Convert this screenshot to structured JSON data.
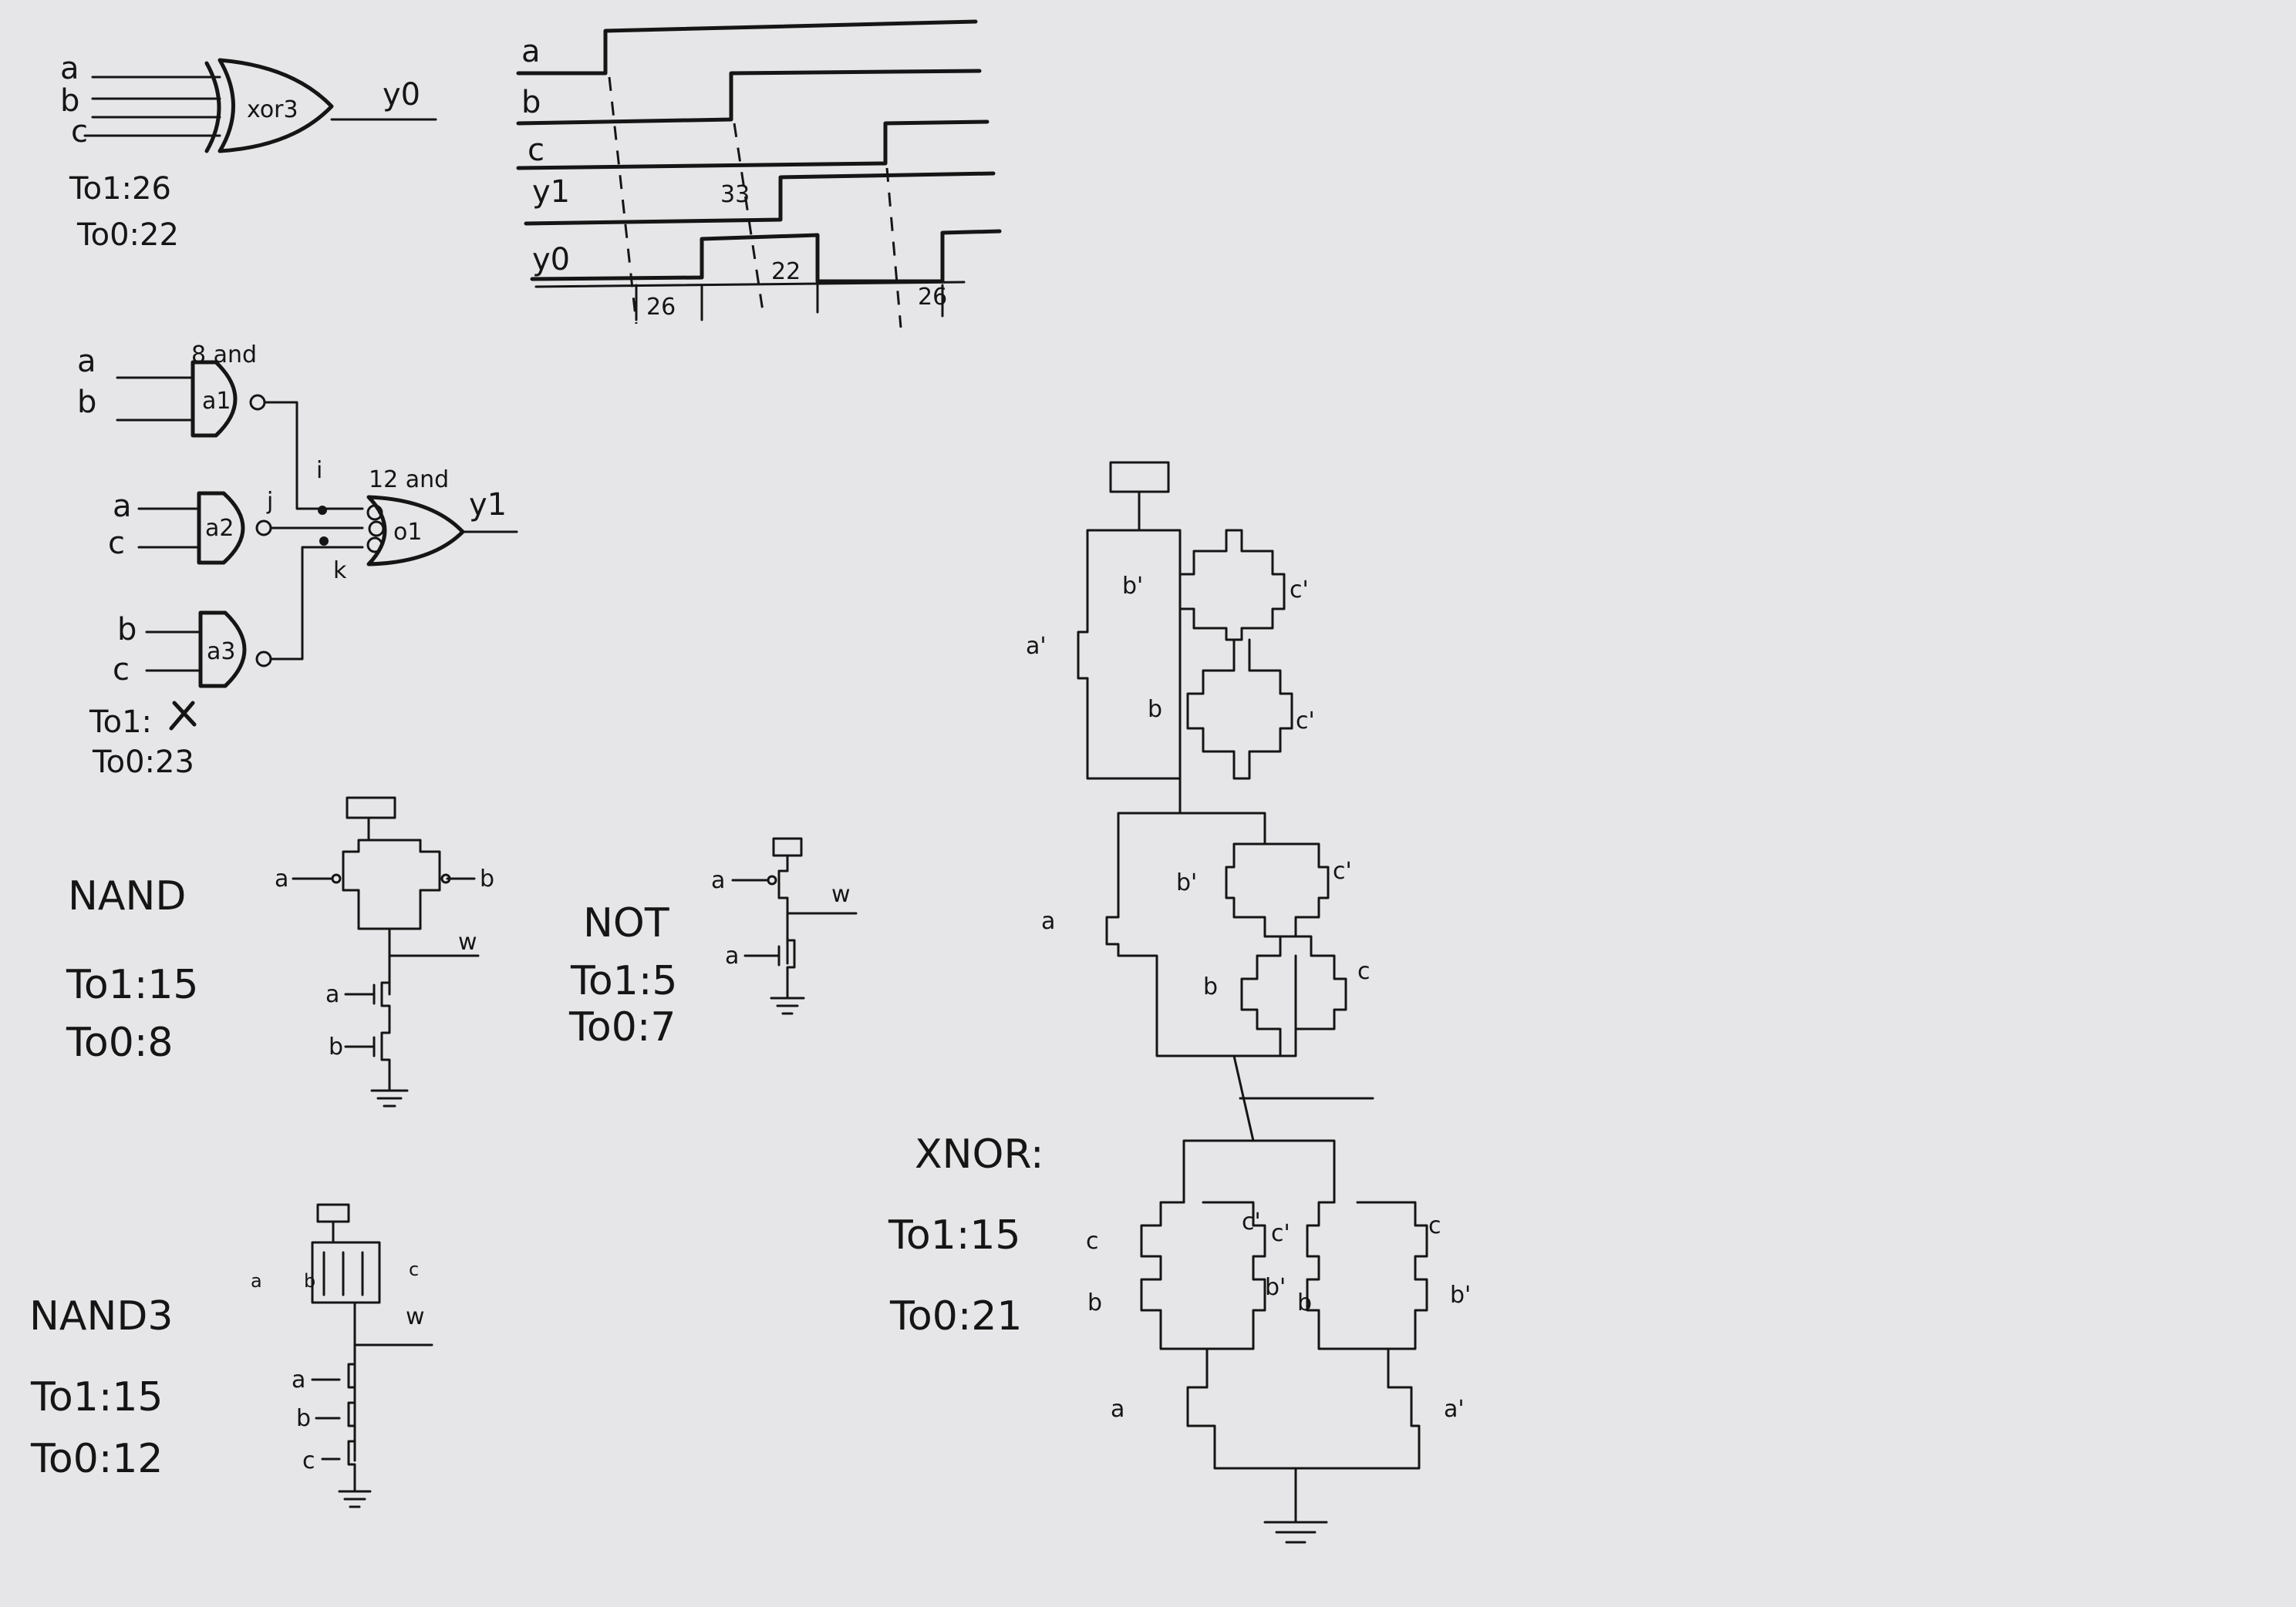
{
  "xor_block": {
    "inputs": [
      "a",
      "b",
      "c"
    ],
    "gate_label": "xor3",
    "output": "y0",
    "t01": "To1:26",
    "t00": "To0:22"
  },
  "timing": {
    "signals": [
      "a",
      "b",
      "c",
      "y1",
      "y0"
    ],
    "delays": [
      "33",
      "26",
      "22",
      "26"
    ]
  },
  "sop_block": {
    "and_gates": [
      {
        "label": "a1",
        "inputs": [
          "a",
          "b"
        ],
        "delay": "8 and"
      },
      {
        "label": "a2",
        "inputs": [
          "a",
          "c"
        ]
      },
      {
        "label": "a3",
        "inputs": [
          "b",
          "c"
        ]
      }
    ],
    "or_gate": {
      "label": "o1",
      "delay": "12 and"
    },
    "nodes": [
      "i",
      "j",
      "k"
    ],
    "output": "y1",
    "t01": "To1:",
    "t00": "To0:23"
  },
  "nand": {
    "title": "NAND",
    "t01": "To1:15",
    "t00": "To0:8",
    "inputs": [
      "a",
      "b"
    ],
    "output": "w"
  },
  "not": {
    "title": "NOT",
    "t01": "To1:5",
    "t00": "To0:7",
    "input": "a",
    "output": "w"
  },
  "nand3": {
    "title": "NAND3",
    "t01": "To1:15",
    "t00": "To0:12",
    "inputs": [
      "a",
      "b",
      "c"
    ],
    "output": "w"
  },
  "xnor": {
    "title": "XNOR:",
    "t01": "To1:15",
    "t00": "To0:21",
    "pull_up": [
      "a'",
      "b'",
      "c'",
      "b",
      "c'",
      "a",
      "b'",
      "c'",
      "b",
      "c"
    ],
    "pull_down": [
      "c",
      "b",
      "c'",
      "b'",
      "c'",
      "c",
      "b",
      "b'",
      "a",
      "a'"
    ]
  }
}
